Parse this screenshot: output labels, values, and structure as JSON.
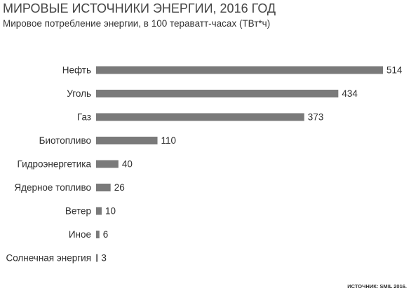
{
  "chart_data": {
    "type": "bar",
    "orientation": "horizontal",
    "title": "МИРОВЫЕ ИСТОЧНИКИ ЭНЕРГИИ, 2016 ГОД",
    "subtitle": "Мировое потребление энергии, в 100 тераватт-часах (ТВт*ч)",
    "categories": [
      "Нефть",
      "Уголь",
      "Газ",
      "Биотопливо",
      "Гидроэнергетика",
      "Ядерное топливо",
      "Ветер",
      "Иное",
      "Солнечная энергия"
    ],
    "values": [
      514,
      434,
      373,
      110,
      40,
      26,
      10,
      6,
      3
    ],
    "data_labels": true,
    "xlabel": "",
    "ylabel": "",
    "xlim": [
      0,
      514
    ],
    "grid": false,
    "source": "ИСТОЧНИК: SMIL 2016."
  },
  "colors": {
    "bar": "#7a7a7a",
    "label_text": "#2e2e2e",
    "title_text": "#454545"
  }
}
